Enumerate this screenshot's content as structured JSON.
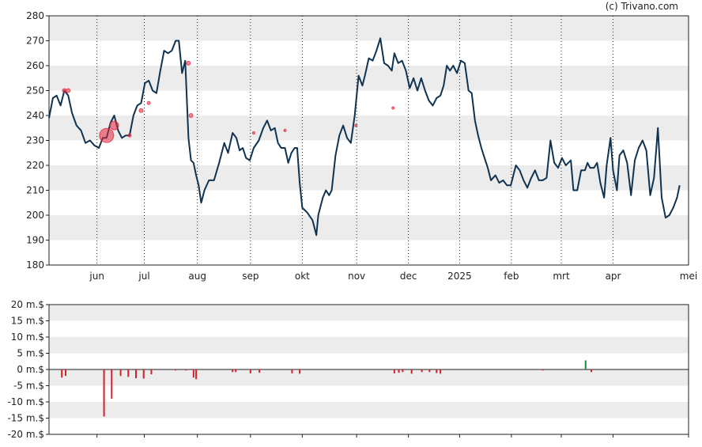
{
  "copyright": "(c) Trivano.com",
  "chart_data": [
    {
      "type": "line",
      "title": "",
      "y_ticks": [
        180,
        190,
        200,
        210,
        220,
        230,
        240,
        250,
        260,
        270,
        280
      ],
      "ylim": [
        180,
        280
      ],
      "x_ticks": [
        "jun",
        "jul",
        "aug",
        "sep",
        "okt",
        "nov",
        "dec",
        "2025",
        "feb",
        "mrt",
        "apr",
        "mei"
      ],
      "x_tick_pos": [
        0.075,
        0.149,
        0.232,
        0.315,
        0.396,
        0.481,
        0.562,
        0.642,
        0.723,
        0.801,
        0.882,
        1.0
      ],
      "grid": "horizontal bands + dotted monthly verticals",
      "line_color": "#0f3350",
      "series": [
        {
          "values": [
            [
              0.0,
              239
            ],
            [
              0.006,
              247
            ],
            [
              0.012,
              248
            ],
            [
              0.018,
              244
            ],
            [
              0.024,
              250
            ],
            [
              0.03,
              248
            ],
            [
              0.036,
              241
            ],
            [
              0.043,
              236
            ],
            [
              0.05,
              234
            ],
            [
              0.057,
              229
            ],
            [
              0.064,
              230
            ],
            [
              0.071,
              228
            ],
            [
              0.078,
              227
            ],
            [
              0.084,
              231
            ],
            [
              0.09,
              231
            ],
            [
              0.096,
              237
            ],
            [
              0.102,
              240
            ],
            [
              0.108,
              234
            ],
            [
              0.114,
              231
            ],
            [
              0.12,
              232
            ],
            [
              0.126,
              232
            ],
            [
              0.132,
              240
            ],
            [
              0.138,
              244
            ],
            [
              0.144,
              245
            ],
            [
              0.15,
              253
            ],
            [
              0.156,
              254
            ],
            [
              0.162,
              250
            ],
            [
              0.168,
              249
            ],
            [
              0.174,
              258
            ],
            [
              0.18,
              266
            ],
            [
              0.186,
              265
            ],
            [
              0.192,
              266
            ],
            [
              0.198,
              270
            ],
            [
              0.203,
              270
            ],
            [
              0.208,
              257
            ],
            [
              0.213,
              262
            ],
            [
              0.218,
              231
            ],
            [
              0.222,
              222
            ],
            [
              0.226,
              221
            ],
            [
              0.23,
              216
            ],
            [
              0.234,
              212
            ],
            [
              0.238,
              205
            ],
            [
              0.243,
              210
            ],
            [
              0.25,
              214
            ],
            [
              0.258,
              214
            ],
            [
              0.266,
              221
            ],
            [
              0.274,
              229
            ],
            [
              0.28,
              225
            ],
            [
              0.287,
              233
            ],
            [
              0.293,
              231
            ],
            [
              0.298,
              226
            ],
            [
              0.303,
              227
            ],
            [
              0.308,
              223
            ],
            [
              0.314,
              222
            ],
            [
              0.32,
              227
            ],
            [
              0.328,
              230
            ],
            [
              0.335,
              235
            ],
            [
              0.341,
              238
            ],
            [
              0.347,
              234
            ],
            [
              0.353,
              235
            ],
            [
              0.358,
              229
            ],
            [
              0.363,
              227
            ],
            [
              0.369,
              227
            ],
            [
              0.374,
              221
            ],
            [
              0.379,
              225
            ],
            [
              0.384,
              227
            ],
            [
              0.388,
              227
            ],
            [
              0.392,
              213
            ],
            [
              0.396,
              203
            ],
            [
              0.404,
              201
            ],
            [
              0.412,
              198
            ],
            [
              0.418,
              192
            ],
            [
              0.421,
              200
            ],
            [
              0.428,
              207
            ],
            [
              0.433,
              210
            ],
            [
              0.438,
              208
            ],
            [
              0.442,
              210
            ],
            [
              0.448,
              224
            ],
            [
              0.454,
              232
            ],
            [
              0.46,
              236
            ],
            [
              0.466,
              231
            ],
            [
              0.472,
              229
            ],
            [
              0.478,
              240
            ],
            [
              0.484,
              256
            ],
            [
              0.49,
              252
            ],
            [
              0.494,
              256
            ],
            [
              0.5,
              263
            ],
            [
              0.506,
              262
            ],
            [
              0.512,
              266
            ],
            [
              0.518,
              271
            ],
            [
              0.524,
              261
            ],
            [
              0.53,
              260
            ],
            [
              0.536,
              258
            ],
            [
              0.54,
              265
            ],
            [
              0.546,
              261
            ],
            [
              0.552,
              262
            ],
            [
              0.558,
              258
            ],
            [
              0.564,
              251
            ],
            [
              0.57,
              255
            ],
            [
              0.576,
              250
            ],
            [
              0.582,
              255
            ],
            [
              0.588,
              250
            ],
            [
              0.594,
              246
            ],
            [
              0.6,
              244
            ],
            [
              0.606,
              247
            ],
            [
              0.612,
              248
            ],
            [
              0.617,
              252
            ],
            [
              0.622,
              260
            ],
            [
              0.627,
              258
            ],
            [
              0.632,
              260
            ],
            [
              0.638,
              257
            ],
            [
              0.644,
              262
            ],
            [
              0.65,
              261
            ],
            [
              0.656,
              250
            ],
            [
              0.661,
              249
            ],
            [
              0.666,
              238
            ],
            [
              0.671,
              232
            ],
            [
              0.676,
              227
            ],
            [
              0.681,
              223
            ],
            [
              0.686,
              219
            ],
            [
              0.691,
              214
            ],
            [
              0.698,
              216
            ],
            [
              0.704,
              213
            ],
            [
              0.71,
              214
            ],
            [
              0.716,
              212
            ],
            [
              0.722,
              212
            ],
            [
              0.73,
              220
            ],
            [
              0.736,
              218
            ],
            [
              0.742,
              214
            ],
            [
              0.748,
              211
            ],
            [
              0.754,
              215
            ],
            [
              0.76,
              218
            ],
            [
              0.766,
              214
            ],
            [
              0.772,
              214
            ],
            [
              0.778,
              215
            ],
            [
              0.784,
              230
            ],
            [
              0.79,
              221
            ],
            [
              0.796,
              219
            ],
            [
              0.802,
              223
            ],
            [
              0.808,
              220
            ],
            [
              0.812,
              221
            ],
            [
              0.816,
              222
            ],
            [
              0.82,
              210
            ],
            [
              0.826,
              210
            ],
            [
              0.832,
              218
            ],
            [
              0.838,
              218
            ],
            [
              0.842,
              221
            ],
            [
              0.846,
              219
            ],
            [
              0.852,
              219
            ],
            [
              0.857,
              221
            ],
            [
              0.862,
              213
            ],
            [
              0.868,
              207
            ],
            [
              0.872,
              220
            ],
            [
              0.878,
              231
            ],
            [
              0.882,
              218
            ],
            [
              0.888,
              210
            ],
            [
              0.892,
              224
            ],
            [
              0.898,
              226
            ],
            [
              0.904,
              221
            ],
            [
              0.91,
              208
            ],
            [
              0.916,
              222
            ],
            [
              0.922,
              227
            ],
            [
              0.928,
              230
            ],
            [
              0.934,
              226
            ],
            [
              0.94,
              208
            ],
            [
              0.946,
              215
            ],
            [
              0.952,
              235
            ],
            [
              0.958,
              207
            ],
            [
              0.964,
              199
            ],
            [
              0.97,
              200
            ],
            [
              0.976,
              203
            ],
            [
              0.982,
              207
            ],
            [
              0.986,
              212
            ]
          ]
        }
      ],
      "markers": [
        {
          "x": 0.024,
          "y": 250,
          "size": 4
        },
        {
          "x": 0.03,
          "y": 250,
          "size": 4
        },
        {
          "x": 0.09,
          "y": 232,
          "size": 17
        },
        {
          "x": 0.102,
          "y": 236,
          "size": 10
        },
        {
          "x": 0.126,
          "y": 232,
          "size": 3
        },
        {
          "x": 0.144,
          "y": 242,
          "size": 4
        },
        {
          "x": 0.156,
          "y": 245,
          "size": 3
        },
        {
          "x": 0.218,
          "y": 261,
          "size": 4
        },
        {
          "x": 0.222,
          "y": 240,
          "size": 4
        },
        {
          "x": 0.32,
          "y": 233,
          "size": 2
        },
        {
          "x": 0.369,
          "y": 234,
          "size": 2
        },
        {
          "x": 0.48,
          "y": 236,
          "size": 2
        },
        {
          "x": 0.538,
          "y": 243,
          "size": 2
        }
      ]
    },
    {
      "type": "bar",
      "title": "",
      "y_ticks": [
        "20 m.$",
        "15 m.$",
        "10 m.$",
        "5 m.$",
        "0 m.$",
        "-5 m.$",
        "-10 m.$",
        "-15 m.$",
        "-20 m.$"
      ],
      "ylim": [
        -20,
        20
      ],
      "positive_color": "#1b8a3a",
      "negative_color": "#d4202a",
      "values": [
        [
          0.02,
          -2.5
        ],
        [
          0.026,
          -2
        ],
        [
          0.086,
          -14.5
        ],
        [
          0.098,
          -9
        ],
        [
          0.112,
          -2
        ],
        [
          0.124,
          -2.3
        ],
        [
          0.136,
          -2.7
        ],
        [
          0.148,
          -2.8
        ],
        [
          0.16,
          -1.5
        ],
        [
          0.198,
          -0.3
        ],
        [
          0.214,
          -0.3
        ],
        [
          0.226,
          -2.5
        ],
        [
          0.23,
          -3
        ],
        [
          0.287,
          -0.8
        ],
        [
          0.292,
          -0.8
        ],
        [
          0.315,
          -1.2
        ],
        [
          0.329,
          -1
        ],
        [
          0.38,
          -1.2
        ],
        [
          0.392,
          -1.3
        ],
        [
          0.54,
          -1.2
        ],
        [
          0.547,
          -1
        ],
        [
          0.553,
          -0.8
        ],
        [
          0.567,
          -1.3
        ],
        [
          0.583,
          -0.8
        ],
        [
          0.595,
          -0.8
        ],
        [
          0.606,
          -1.1
        ],
        [
          0.612,
          -1.3
        ],
        [
          0.772,
          -0.3
        ],
        [
          0.839,
          2.8
        ],
        [
          0.848,
          -0.8
        ]
      ],
      "x_tick_pos": [
        0.075,
        0.149,
        0.232,
        0.315,
        0.396,
        0.481,
        0.562,
        0.642,
        0.723,
        0.801,
        0.882,
        1.0
      ]
    }
  ]
}
